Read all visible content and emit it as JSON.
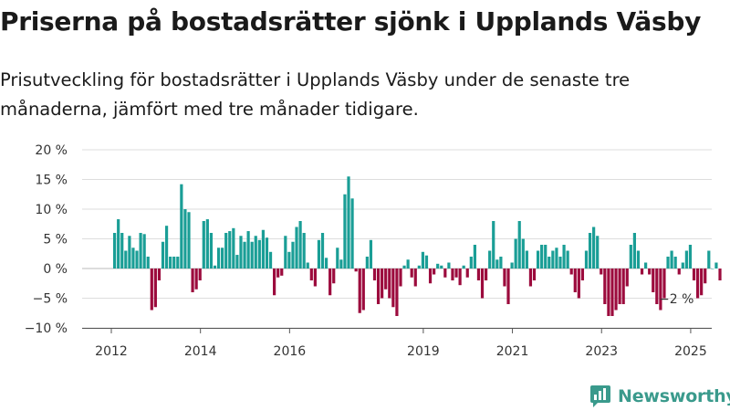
{
  "title": "Priserna på bostadsrätter sjönk i Upplands Väsby",
  "subtitle": "Prisutveckling för bostadsrätter i Upplands Väsby under de senaste tre månaderna, jämfört med tre månader tidigare.",
  "brand": "Newsworthy",
  "colors": {
    "positive": "#1a9e96",
    "negative": "#9c0b3d",
    "grid": "#dddddd",
    "brand": "#3a9a8c"
  },
  "chart_data": {
    "type": "bar",
    "unit": "%",
    "ylim": [
      -10,
      20
    ],
    "yticks": [
      {
        "value": 20,
        "label": "20 %"
      },
      {
        "value": 15,
        "label": "15 %"
      },
      {
        "value": 10,
        "label": "10 %"
      },
      {
        "value": 5,
        "label": "5 %"
      },
      {
        "value": 0,
        "label": "0 %"
      },
      {
        "value": -5,
        "label": "−5 %"
      },
      {
        "value": -10,
        "label": "−10 %"
      }
    ],
    "xticks": [
      {
        "date": "2012-01",
        "label": "2012"
      },
      {
        "date": "2014-01",
        "label": "2014"
      },
      {
        "date": "2016-01",
        "label": "2016"
      },
      {
        "date": "2019-01",
        "label": "2019"
      },
      {
        "date": "2021-01",
        "label": "2021"
      },
      {
        "date": "2023-01",
        "label": "2023"
      },
      {
        "date": "2025-01",
        "label": "2025"
      }
    ],
    "x_start": "2012-01",
    "end_label": "−2 %",
    "grid": true,
    "legend": "none",
    "series": [
      {
        "values": [
          6,
          8.3,
          6,
          3,
          5.5,
          3.5,
          3,
          6,
          5.8,
          2,
          -7,
          -6.5,
          -2,
          4.5,
          7.2,
          2,
          2,
          2,
          14.2,
          10,
          9.5,
          -4,
          -3.5,
          -2,
          8,
          8.3,
          6,
          0.5,
          3.5,
          3.5,
          6,
          6.3,
          6.8,
          2.3,
          5.5,
          4.5,
          6.3,
          4.5,
          5.5,
          4.8,
          6.5,
          5.2,
          2.8,
          -4.5,
          -1.5,
          -1.2,
          5.5,
          2.8,
          4.5,
          7,
          8,
          6,
          1,
          -2,
          -3,
          4.8,
          6,
          1.8,
          -4.5,
          -2.5,
          3.5,
          1.5,
          12.5,
          15.5,
          11.8,
          -0.5,
          -7.5,
          -7,
          2,
          4.8,
          -2,
          -6,
          -5,
          -3.5,
          -5,
          -6.5,
          -8,
          -3,
          0.5,
          1.5,
          -1.5,
          -3,
          0.5,
          2.8,
          2.2,
          -2.5,
          -1,
          0.8,
          0.5,
          -1.5,
          1,
          -2,
          -1.5,
          -2.8,
          0.5,
          -1.5,
          2,
          4,
          -2,
          -5,
          -2,
          3,
          8,
          1.5,
          2,
          -3,
          -6,
          1,
          5,
          8,
          5,
          3,
          -3,
          -2,
          3,
          4,
          4,
          2,
          3,
          3.5,
          2,
          4,
          3,
          -1,
          -4,
          -5,
          -2,
          3,
          6,
          7,
          5.5,
          -1,
          -6,
          -8,
          -8,
          -7,
          -6,
          -6,
          -3,
          4,
          6,
          3,
          -1,
          1,
          -1,
          -4,
          -6,
          -7,
          -5,
          2,
          3,
          2,
          -1,
          1,
          3,
          4,
          -2,
          -5,
          -4.5,
          -2.5,
          3,
          0,
          1,
          -2
        ]
      }
    ]
  }
}
